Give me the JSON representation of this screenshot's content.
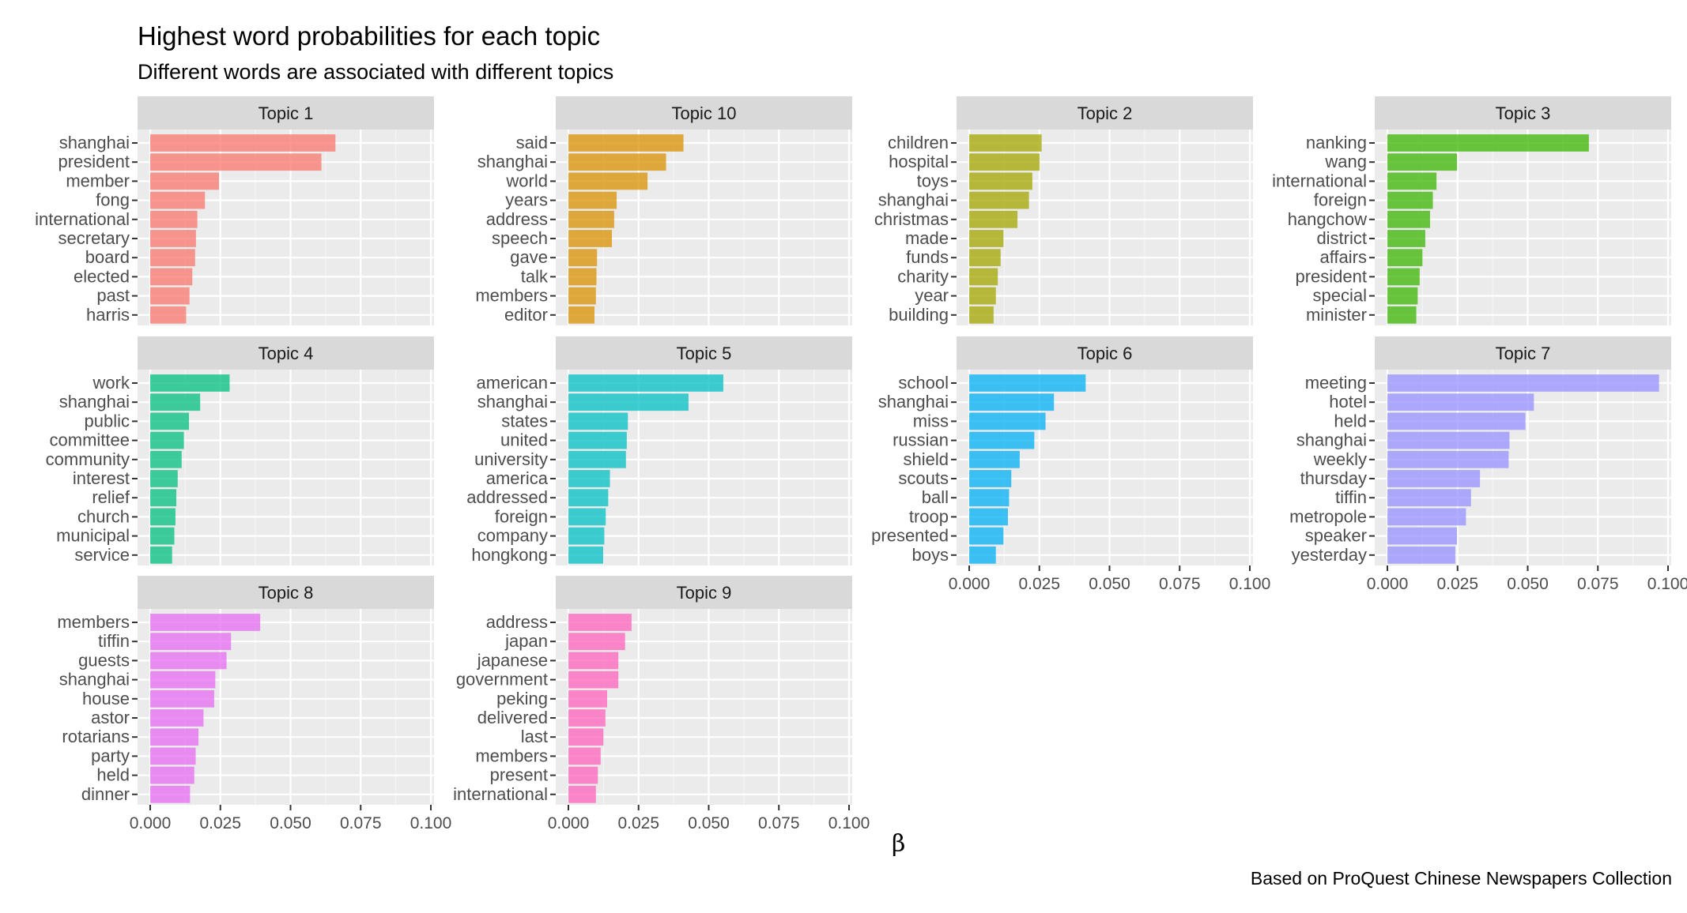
{
  "chart_data": {
    "type": "bar",
    "orientation": "horizontal",
    "layout": "facet_wrap",
    "title": "Highest word probabilities for each topic",
    "subtitle": "Different words are associated with different topics",
    "xlabel": "β",
    "caption": "Based on ProQuest Chinese Newspapers Collection",
    "xlim": [
      0,
      0.1
    ],
    "x_ticks": [
      "0.000",
      "0.025",
      "0.050",
      "0.075",
      "0.100"
    ],
    "grid": true,
    "facets": [
      {
        "name": "Topic 1",
        "color": "#F8766D",
        "terms": [
          "shanghai",
          "president",
          "member",
          "fong",
          "international",
          "secretary",
          "board",
          "elected",
          "past",
          "harris"
        ],
        "values": [
          0.066,
          0.061,
          0.0245,
          0.0195,
          0.0168,
          0.0163,
          0.016,
          0.015,
          0.014,
          0.0128
        ]
      },
      {
        "name": "Topic 10",
        "color": "#D89000",
        "terms": [
          "said",
          "shanghai",
          "world",
          "years",
          "address",
          "speech",
          "gave",
          "talk",
          "members",
          "editor"
        ],
        "values": [
          0.041,
          0.0348,
          0.0282,
          0.0172,
          0.0163,
          0.0155,
          0.0102,
          0.01,
          0.0098,
          0.0093
        ]
      },
      {
        "name": "Topic 2",
        "color": "#A3A500",
        "terms": [
          "children",
          "hospital",
          "toys",
          "shanghai",
          "christmas",
          "made",
          "funds",
          "charity",
          "year",
          "building"
        ],
        "values": [
          0.0258,
          0.0251,
          0.0225,
          0.0213,
          0.0172,
          0.0122,
          0.0112,
          0.0102,
          0.0095,
          0.0087
        ]
      },
      {
        "name": "Topic 3",
        "color": "#39B600",
        "terms": [
          "nanking",
          "wang",
          "international",
          "foreign",
          "hangchow",
          "district",
          "affairs",
          "president",
          "special",
          "minister"
        ],
        "values": [
          0.0718,
          0.0248,
          0.0175,
          0.0162,
          0.0152,
          0.0135,
          0.0125,
          0.0115,
          0.0108,
          0.0103
        ]
      },
      {
        "name": "Topic 4",
        "color": "#00BF7D",
        "terms": [
          "work",
          "shanghai",
          "public",
          "committee",
          "community",
          "interest",
          "relief",
          "church",
          "municipal",
          "service"
        ],
        "values": [
          0.0283,
          0.0178,
          0.0138,
          0.012,
          0.0112,
          0.0098,
          0.0093,
          0.009,
          0.0086,
          0.0078
        ]
      },
      {
        "name": "Topic 5",
        "color": "#00BFC4",
        "terms": [
          "american",
          "shanghai",
          "states",
          "united",
          "university",
          "america",
          "addressed",
          "foreign",
          "company",
          "hongkong"
        ],
        "values": [
          0.0552,
          0.0428,
          0.0212,
          0.0208,
          0.0205,
          0.0148,
          0.0142,
          0.0133,
          0.0128,
          0.0124
        ]
      },
      {
        "name": "Topic 6",
        "color": "#00B0F6",
        "terms": [
          "school",
          "shanghai",
          "miss",
          "russian",
          "shield",
          "scouts",
          "ball",
          "troop",
          "presented",
          "boys"
        ],
        "values": [
          0.0415,
          0.0302,
          0.0272,
          0.0232,
          0.018,
          0.015,
          0.0142,
          0.0138,
          0.0122,
          0.0095
        ]
      },
      {
        "name": "Topic 7",
        "color": "#9590FF",
        "terms": [
          "meeting",
          "hotel",
          "held",
          "shanghai",
          "weekly",
          "thursday",
          "tiffin",
          "metropole",
          "speaker",
          "yesterday"
        ],
        "values": [
          0.0968,
          0.0522,
          0.0492,
          0.0435,
          0.0432,
          0.033,
          0.0298,
          0.028,
          0.0248,
          0.0242
        ]
      },
      {
        "name": "Topic 8",
        "color": "#E76BF3",
        "terms": [
          "members",
          "tiffin",
          "guests",
          "shanghai",
          "house",
          "astor",
          "rotarians",
          "party",
          "held",
          "dinner"
        ],
        "values": [
          0.0392,
          0.0288,
          0.0272,
          0.0232,
          0.0228,
          0.019,
          0.0172,
          0.0162,
          0.0157,
          0.0142
        ]
      },
      {
        "name": "Topic 9",
        "color": "#FF62BC",
        "terms": [
          "address",
          "japan",
          "japanese",
          "government",
          "peking",
          "delivered",
          "last",
          "members",
          "present",
          "international"
        ],
        "values": [
          0.0225,
          0.0202,
          0.0178,
          0.0178,
          0.0138,
          0.0132,
          0.0125,
          0.0115,
          0.0105,
          0.0098
        ]
      }
    ]
  }
}
